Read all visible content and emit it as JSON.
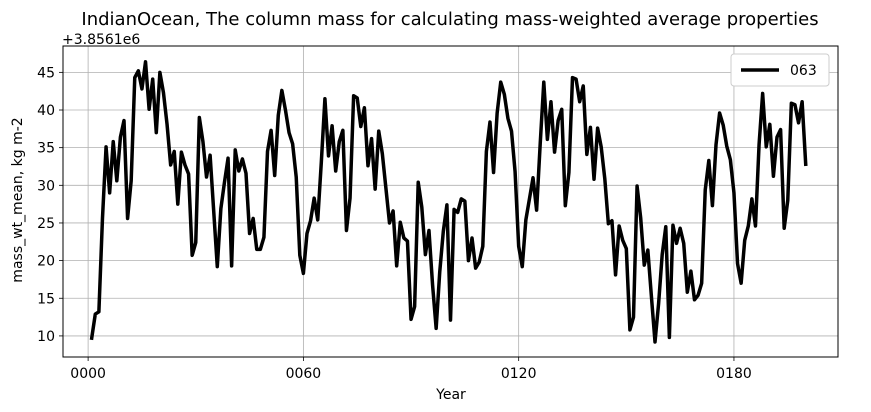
{
  "chart_data": {
    "type": "line",
    "title": "IndianOcean, The column mass for calculating mass-weighted average properties",
    "xlabel": "Year",
    "ylabel": "mass_wt_mean, kg m-2",
    "y_offset_label": "+3.8561e6",
    "xlim": [
      -7,
      209
    ],
    "ylim": [
      7.2,
      48.5
    ],
    "x_ticks": [
      {
        "value": 0,
        "label": "0000"
      },
      {
        "value": 60,
        "label": "0060"
      },
      {
        "value": 120,
        "label": "0120"
      },
      {
        "value": 180,
        "label": "0180"
      }
    ],
    "y_ticks": [
      10,
      15,
      20,
      25,
      30,
      35,
      40,
      45
    ],
    "grid": true,
    "legend": {
      "position": "top-right"
    },
    "series": [
      {
        "name": "063",
        "color": "#000000",
        "x": [
          1,
          2,
          3,
          4,
          5,
          6,
          7,
          8,
          9,
          10,
          11,
          12,
          13,
          14,
          15,
          16,
          17,
          18,
          19,
          20,
          21,
          22,
          23,
          24,
          25,
          26,
          27,
          28,
          29,
          30,
          31,
          32,
          33,
          34,
          35,
          36,
          37,
          38,
          39,
          40,
          41,
          42,
          43,
          44,
          45,
          46,
          47,
          48,
          49,
          50,
          51,
          52,
          53,
          54,
          55,
          56,
          57,
          58,
          59,
          60,
          61,
          62,
          63,
          64,
          65,
          66,
          67,
          68,
          69,
          70,
          71,
          72,
          73,
          74,
          75,
          76,
          77,
          78,
          79,
          80,
          81,
          82,
          83,
          84,
          85,
          86,
          87,
          88,
          89,
          90,
          91,
          92,
          93,
          94,
          95,
          96,
          97,
          98,
          99,
          100,
          101,
          102,
          103,
          104,
          105,
          106,
          107,
          108,
          109,
          110,
          111,
          112,
          113,
          114,
          115,
          116,
          117,
          118,
          119,
          120,
          121,
          122,
          123,
          124,
          125,
          126,
          127,
          128,
          129,
          130,
          131,
          132,
          133,
          134,
          135,
          136,
          137,
          138,
          139,
          140,
          141,
          142,
          143,
          144,
          145,
          146,
          147,
          148,
          149,
          150,
          151,
          152,
          153,
          154,
          155,
          156,
          157,
          158,
          159,
          160,
          161,
          162,
          163,
          164,
          165,
          166,
          167,
          168,
          169,
          170,
          171,
          172,
          173,
          174,
          175,
          176,
          177,
          178,
          179,
          180,
          181,
          182,
          183,
          184,
          185,
          186,
          187,
          188,
          189,
          190,
          191,
          192,
          193,
          194,
          195,
          196,
          197,
          198,
          199,
          200
        ],
        "y": [
          9.7,
          12.9,
          13.2,
          25.6,
          35.1,
          29.0,
          35.8,
          30.6,
          36.4,
          38.6,
          25.6,
          30.6,
          44.3,
          45.2,
          42.8,
          46.4,
          40.1,
          44.1,
          37.0,
          45.0,
          42.3,
          38.1,
          32.7,
          34.5,
          27.5,
          34.4,
          32.7,
          31.5,
          20.7,
          22.4,
          39.0,
          35.8,
          31.1,
          34.0,
          26.6,
          19.2,
          26.9,
          30.4,
          33.6,
          19.3,
          34.7,
          31.9,
          33.5,
          31.6,
          23.6,
          25.6,
          21.5,
          21.5,
          23.1,
          34.5,
          37.3,
          31.3,
          39.3,
          42.6,
          40.0,
          37.0,
          35.5,
          31.1,
          20.7,
          18.3,
          23.6,
          25.3,
          28.3,
          25.4,
          33.1,
          41.5,
          33.9,
          37.9,
          31.9,
          35.8,
          37.3,
          24.0,
          28.3,
          41.9,
          41.6,
          37.8,
          40.3,
          32.6,
          36.2,
          29.5,
          37.2,
          34.2,
          29.6,
          25.0,
          26.6,
          19.3,
          25.1,
          23.0,
          22.6,
          12.2,
          13.9,
          30.4,
          27.1,
          20.8,
          24.0,
          16.8,
          11.0,
          18.5,
          23.9,
          27.4,
          12.1,
          26.8,
          26.4,
          28.2,
          27.9,
          20.0,
          23.0,
          19.0,
          19.8,
          21.9,
          34.5,
          38.4,
          31.7,
          39.6,
          43.7,
          42.1,
          38.9,
          37.2,
          31.8,
          21.9,
          19.2,
          25.4,
          28.2,
          31.0,
          26.7,
          35.5,
          43.7,
          36.1,
          41.1,
          34.4,
          38.6,
          40.1,
          27.3,
          31.7,
          44.3,
          44.1,
          41.1,
          43.2,
          34.1,
          37.7,
          30.8,
          37.6,
          35.1,
          30.9,
          24.9,
          25.3,
          18.1,
          24.6,
          22.7,
          21.6,
          10.8,
          12.5,
          29.9,
          25.7,
          19.4,
          21.4,
          15.2,
          9.2,
          14.3,
          20.8,
          24.5,
          9.8,
          24.7,
          22.3,
          24.3,
          22.3,
          15.8,
          18.6,
          14.8,
          15.4,
          17.0,
          29.4,
          33.3,
          27.3,
          35.4,
          39.6,
          38.0,
          35.2,
          33.4,
          29.0,
          19.6,
          17.0,
          22.7,
          24.6,
          28.2,
          24.6,
          35.4,
          42.2,
          35.1,
          38.1,
          31.2,
          36.4,
          37.4,
          24.3,
          28.0,
          40.9,
          40.7,
          38.3,
          41.1,
          32.8
        ]
      }
    ]
  }
}
